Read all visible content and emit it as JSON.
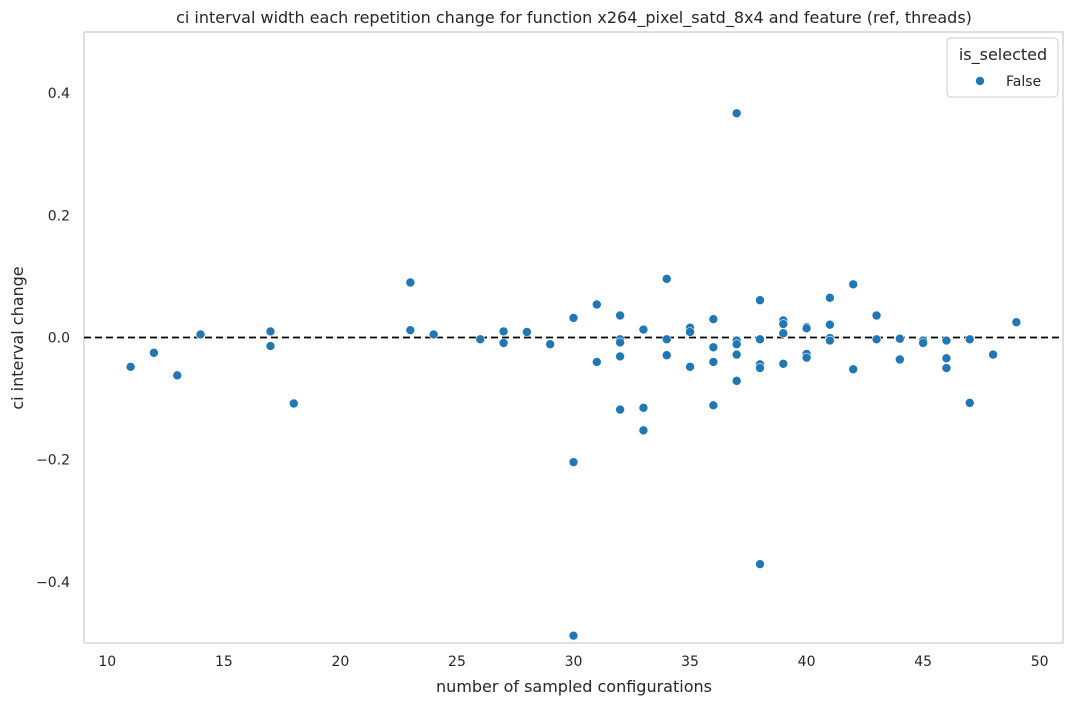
{
  "chart_data": {
    "type": "scatter",
    "title": "ci interval width each repetition change for function x264_pixel_satd_8x4 and feature (ref, threads)",
    "xlabel": "number of sampled configurations",
    "ylabel": "ci interval change",
    "xlim": [
      9,
      51
    ],
    "ylim": [
      -0.5,
      0.5
    ],
    "xticks": [
      10,
      15,
      20,
      25,
      30,
      35,
      40,
      45,
      50
    ],
    "yticks": [
      -0.4,
      -0.2,
      0.0,
      0.2,
      0.4
    ],
    "xtick_labels": [
      "10",
      "15",
      "20",
      "25",
      "30",
      "35",
      "40",
      "45",
      "50"
    ],
    "ytick_labels": [
      "−0.4",
      "−0.2",
      "0.0",
      "0.2",
      "0.4"
    ],
    "grid": false,
    "reference_line": {
      "y": 0.0,
      "style": "dashed",
      "color": "#000000"
    },
    "legend": {
      "title": "is_selected",
      "placement": "top-right"
    },
    "series": [
      {
        "name": "False",
        "color": "#1f77b4",
        "points": [
          [
            11,
            -0.048
          ],
          [
            12,
            -0.025
          ],
          [
            13,
            -0.062
          ],
          [
            14,
            0.005
          ],
          [
            17,
            0.01
          ],
          [
            17,
            -0.014
          ],
          [
            18,
            -0.108
          ],
          [
            23,
            0.09
          ],
          [
            23,
            0.012
          ],
          [
            24,
            0.005
          ],
          [
            26,
            -0.003
          ],
          [
            27,
            0.01
          ],
          [
            27,
            -0.009
          ],
          [
            28,
            0.009
          ],
          [
            29,
            -0.011
          ],
          [
            30,
            0.032
          ],
          [
            30,
            -0.204
          ],
          [
            30,
            -0.488
          ],
          [
            31,
            0.054
          ],
          [
            31,
            -0.04
          ],
          [
            32,
            0.036
          ],
          [
            32,
            -0.003
          ],
          [
            32,
            -0.008
          ],
          [
            32,
            -0.031
          ],
          [
            32,
            -0.118
          ],
          [
            33,
            0.013
          ],
          [
            33,
            -0.115
          ],
          [
            33,
            -0.152
          ],
          [
            34,
            0.096
          ],
          [
            34,
            -0.003
          ],
          [
            34,
            -0.029
          ],
          [
            35,
            0.016
          ],
          [
            35,
            0.009
          ],
          [
            35,
            -0.048
          ],
          [
            36,
            0.03
          ],
          [
            36,
            -0.016
          ],
          [
            36,
            -0.04
          ],
          [
            36,
            -0.111
          ],
          [
            37,
            0.367
          ],
          [
            37,
            -0.005
          ],
          [
            37,
            -0.011
          ],
          [
            37,
            -0.028
          ],
          [
            37,
            -0.071
          ],
          [
            38,
            0.061
          ],
          [
            38,
            -0.003
          ],
          [
            38,
            -0.044
          ],
          [
            38,
            -0.05
          ],
          [
            38,
            -0.371
          ],
          [
            39,
            0.028
          ],
          [
            39,
            0.022
          ],
          [
            39,
            0.007
          ],
          [
            39,
            -0.043
          ],
          [
            40,
            0.017
          ],
          [
            40,
            0.015
          ],
          [
            40,
            -0.027
          ],
          [
            40,
            -0.033
          ],
          [
            41,
            0.065
          ],
          [
            41,
            0.021
          ],
          [
            41,
            -0.001
          ],
          [
            41,
            -0.005
          ],
          [
            42,
            0.087
          ],
          [
            42,
            -0.052
          ],
          [
            43,
            0.036
          ],
          [
            43,
            -0.003
          ],
          [
            44,
            -0.002
          ],
          [
            44,
            -0.036
          ],
          [
            45,
            -0.005
          ],
          [
            45,
            -0.009
          ],
          [
            46,
            -0.005
          ],
          [
            46,
            -0.034
          ],
          [
            46,
            -0.05
          ],
          [
            47,
            -0.003
          ],
          [
            47,
            -0.107
          ],
          [
            48,
            -0.028
          ],
          [
            49,
            0.025
          ]
        ]
      }
    ]
  }
}
